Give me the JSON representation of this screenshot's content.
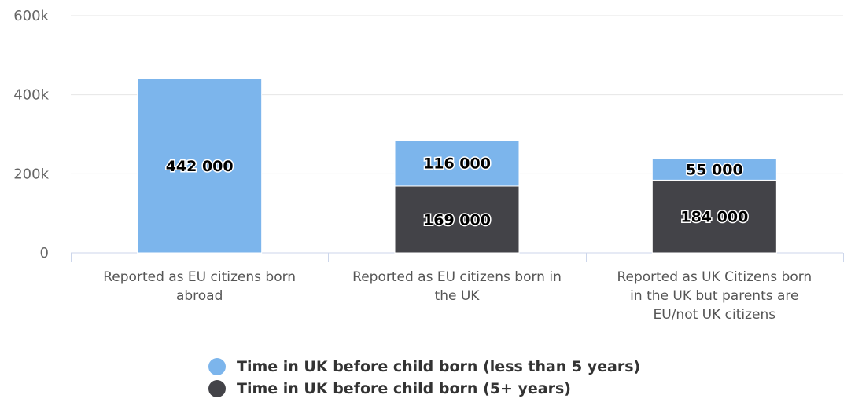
{
  "chart_data": {
    "type": "bar",
    "stacked": true,
    "categories": [
      "Reported as EU citizens born abroad",
      "Reported as EU citizens born in the UK",
      "Reported as UK Citizens born in the UK but parents are EU/not UK citizens"
    ],
    "category_label_lines": [
      [
        "Reported as EU citizens born",
        "abroad"
      ],
      [
        "Reported as EU citizens born in",
        "the UK"
      ],
      [
        "Reported as UK Citizens born",
        "in the UK but parents are",
        "EU/not UK citizens"
      ]
    ],
    "series": [
      {
        "name": "Time in UK before child born (less than 5 years)",
        "color": "#7cb5ec",
        "values": [
          442000,
          116000,
          55000
        ],
        "labels": [
          "442 000",
          "116 000",
          "55 000"
        ]
      },
      {
        "name": "Time in UK before child born (5+ years)",
        "color": "#434348",
        "values": [
          0,
          169000,
          184000
        ],
        "labels": [
          "",
          "169 000",
          "184 000"
        ]
      }
    ],
    "yticks": [
      {
        "value": 0,
        "label": "0"
      },
      {
        "value": 200000,
        "label": "200k"
      },
      {
        "value": 400000,
        "label": "400k"
      },
      {
        "value": 600000,
        "label": "600k"
      }
    ],
    "ylim": [
      0,
      600000
    ],
    "grid": true,
    "legend_position": "bottom-center"
  }
}
